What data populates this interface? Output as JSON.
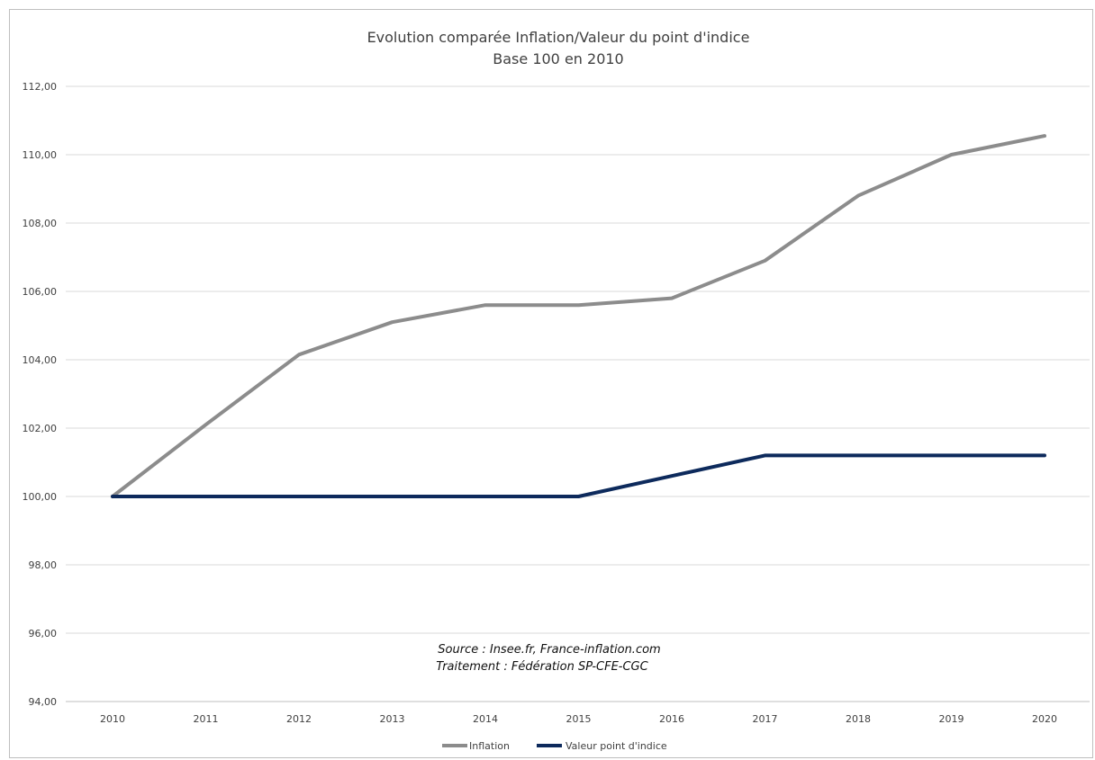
{
  "chart_data": {
    "type": "line",
    "title": "Evolution comparée Inflation/Valeur du point d'indice",
    "subtitle": "Base 100 en 2010",
    "categories": [
      "2010",
      "2011",
      "2012",
      "2013",
      "2014",
      "2015",
      "2016",
      "2017",
      "2018",
      "2019",
      "2020"
    ],
    "y_tick_labels": [
      "94,00",
      "96,00",
      "98,00",
      "100,00",
      "102,00",
      "104,00",
      "106,00",
      "108,00",
      "110,00",
      "112,00"
    ],
    "ylim": [
      94,
      112
    ],
    "grid": true,
    "legend_position": "bottom",
    "series": [
      {
        "name": "Inflation",
        "color": "#8c8c8c",
        "values": [
          100.0,
          102.1,
          104.15,
          105.1,
          105.6,
          105.6,
          105.8,
          106.9,
          108.8,
          110.0,
          110.55
        ]
      },
      {
        "name": "Valeur point d'indice",
        "color": "#0d2a5c",
        "values": [
          100.0,
          100.0,
          100.0,
          100.0,
          100.0,
          100.0,
          100.6,
          101.2,
          101.2,
          101.2,
          101.2
        ]
      }
    ],
    "annotations": [
      "Source : Insee.fr, France-inflation.com",
      "Traitement : Fédération SP-CFE-CGC"
    ]
  }
}
